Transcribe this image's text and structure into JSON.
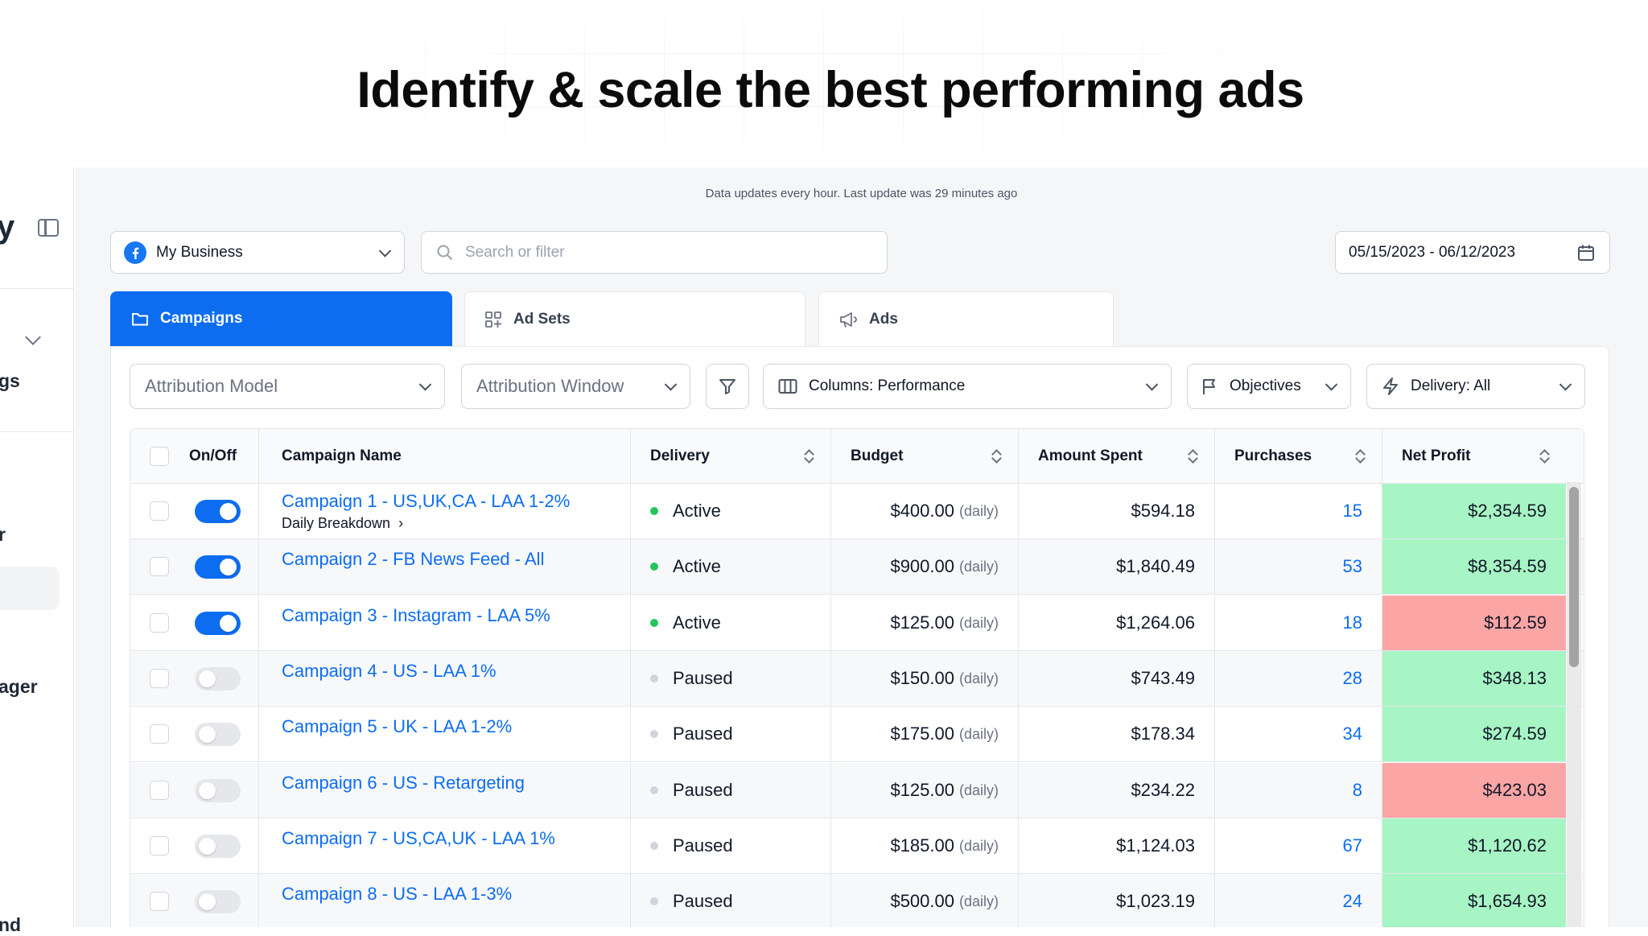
{
  "hero": {
    "title": "Identify & scale the best performing ads"
  },
  "sidebar": {
    "logo_fragment": "y",
    "items": [
      "gs",
      "r",
      "ager",
      "nd"
    ]
  },
  "notice": "Data updates every hour. Last update was 29 minutes ago",
  "account_select": {
    "value": "My Business"
  },
  "search": {
    "placeholder": "Search or filter"
  },
  "date_range": {
    "value": "05/15/2023 - 06/12/2023"
  },
  "tabs": [
    {
      "label": "Campaigns",
      "icon": "folder-icon",
      "active": true
    },
    {
      "label": "Ad Sets",
      "icon": "grid-icon",
      "active": false
    },
    {
      "label": "Ads",
      "icon": "megaphone-icon",
      "active": false
    }
  ],
  "filters": {
    "attribution_model": "Attribution Model",
    "attribution_window": "Attribution Window",
    "columns": "Columns: Performance",
    "objectives": "Objectives",
    "delivery": "Delivery: All"
  },
  "table": {
    "headers": {
      "onoff": "On/Off",
      "name": "Campaign Name",
      "delivery": "Delivery",
      "budget": "Budget",
      "spent": "Amount Spent",
      "purchases": "Purchases",
      "profit": "Net Profit"
    },
    "daily_label": "(daily)",
    "breakdown_label": "Daily Breakdown",
    "rows": [
      {
        "on": true,
        "name": "Campaign 1 - US,UK,CA - LAA 1-2%",
        "delivery": "Active",
        "budget": "$400.00",
        "spent": "$594.18",
        "purchases": "15",
        "profit": "$2,354.59",
        "profit_status": "positive",
        "breakdown": true
      },
      {
        "on": true,
        "name": "Campaign 2 - FB News Feed - All",
        "delivery": "Active",
        "budget": "$900.00",
        "spent": "$1,840.49",
        "purchases": "53",
        "profit": "$8,354.59",
        "profit_status": "positive"
      },
      {
        "on": true,
        "name": "Campaign 3 - Instagram - LAA 5%",
        "delivery": "Active",
        "budget": "$125.00",
        "spent": "$1,264.06",
        "purchases": "18",
        "profit": "$112.59",
        "profit_status": "negative"
      },
      {
        "on": false,
        "name": "Campaign 4 - US - LAA 1%",
        "delivery": "Paused",
        "budget": "$150.00",
        "spent": "$743.49",
        "purchases": "28",
        "profit": "$348.13",
        "profit_status": "positive"
      },
      {
        "on": false,
        "name": "Campaign 5 - UK - LAA 1-2%",
        "delivery": "Paused",
        "budget": "$175.00",
        "spent": "$178.34",
        "purchases": "34",
        "profit": "$274.59",
        "profit_status": "positive"
      },
      {
        "on": false,
        "name": "Campaign 6 - US - Retargeting",
        "delivery": "Paused",
        "budget": "$125.00",
        "spent": "$234.22",
        "purchases": "8",
        "profit": "$423.03",
        "profit_status": "negative"
      },
      {
        "on": false,
        "name": "Campaign 7 - US,CA,UK - LAA 1%",
        "delivery": "Paused",
        "budget": "$185.00",
        "spent": "$1,124.03",
        "purchases": "67",
        "profit": "$1,120.62",
        "profit_status": "positive"
      },
      {
        "on": false,
        "name": "Campaign 8 - US - LAA 1-3%",
        "delivery": "Paused",
        "budget": "$500.00",
        "spent": "$1,023.19",
        "purchases": "24",
        "profit": "$1,654.93",
        "profit_status": "positive"
      }
    ]
  },
  "colors": {
    "primary": "#0c6df0",
    "profit_positive": "#a7f5c4",
    "profit_negative": "#fca5a5",
    "active_dot": "#22c55e",
    "paused_dot": "#d1d5db"
  }
}
